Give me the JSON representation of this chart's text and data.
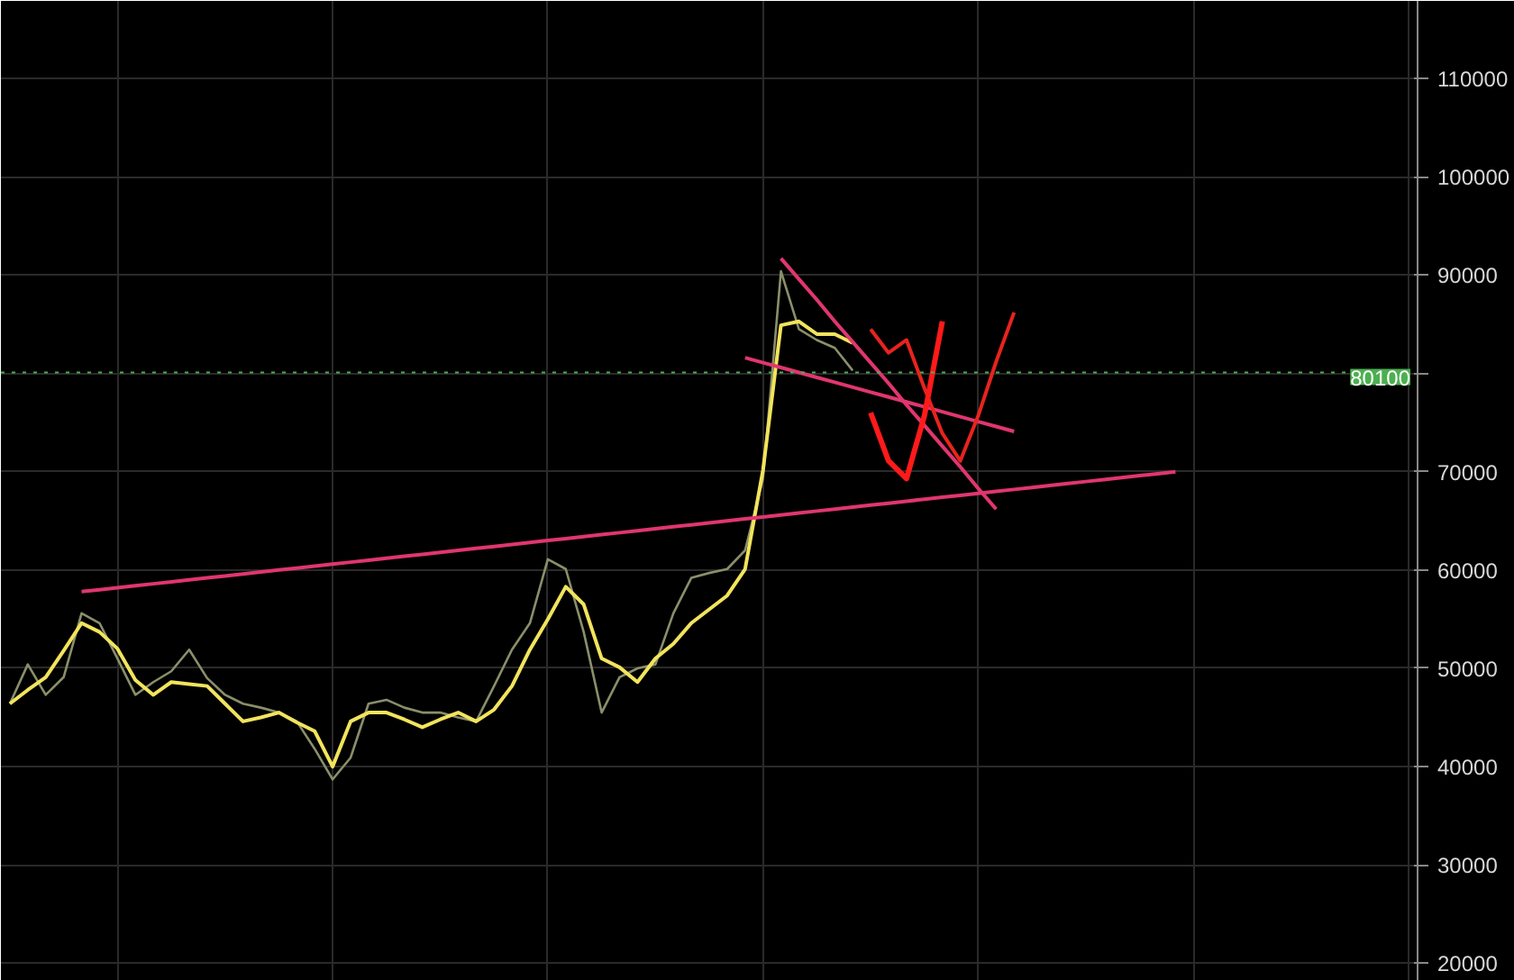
{
  "chart_data": {
    "type": "line",
    "categories": [
      null,
      null,
      null,
      null,
      null,
      null,
      null,
      null,
      null,
      null,
      null,
      null,
      null,
      null,
      null,
      null,
      null,
      null,
      null,
      null,
      null,
      null,
      null,
      null,
      null,
      null,
      null,
      null,
      null,
      null,
      null,
      null,
      null,
      null,
      null,
      null,
      null,
      null,
      null,
      null,
      null,
      null,
      null,
      null,
      null,
      null,
      null,
      null,
      null,
      null,
      null,
      null,
      null,
      null,
      null,
      null,
      null,
      null,
      null,
      null,
      null,
      null,
      null,
      null,
      null,
      null,
      null,
      null,
      null,
      null,
      null,
      null,
      null,
      null,
      null,
      null,
      null,
      null,
      null
    ],
    "ylim": [
      18200,
      117900
    ],
    "yticks": [
      20000,
      30000,
      40000,
      50000,
      60000,
      70000,
      {
        "value": 80000,
        "label": null
      },
      90000,
      100000,
      110000
    ],
    "tick_labels": "y",
    "grid": true,
    "line_style": "solid",
    "ref_lines": [
      {
        "axis": "y",
        "value": 80100,
        "label": "80100",
        "color": "#4caf50",
        "line_style": "dotted"
      }
    ],
    "series": [
      {
        "color": "#8a8f6a",
        "values": [
          46400,
          50400,
          47300,
          49100,
          55600,
          54600,
          51000,
          47300,
          48600,
          49700,
          51900,
          49000,
          47300,
          46400,
          46000,
          45500,
          44600,
          41800,
          38700,
          40900,
          46400,
          46800,
          46000,
          45500,
          45500,
          45000,
          44600,
          48200,
          51900,
          54600,
          61100,
          60100,
          53700,
          45500,
          49100,
          50000,
          50400,
          55600,
          59200,
          59700,
          60100,
          62000,
          69300,
          90400,
          84500,
          83400,
          82600,
          80300,
          null,
          null,
          null,
          null,
          null,
          null,
          null,
          null,
          null,
          null,
          null,
          null,
          null,
          null,
          null,
          null,
          null,
          null,
          null,
          null,
          null,
          null,
          null,
          null,
          null,
          null,
          null,
          null,
          null,
          null,
          null
        ]
      },
      {
        "color": "#f2e45c",
        "values": [
          46400,
          47800,
          49100,
          51800,
          54600,
          53700,
          52000,
          48800,
          47300,
          48600,
          48400,
          48200,
          46400,
          44600,
          45000,
          45500,
          44500,
          43600,
          40000,
          44600,
          45500,
          45500,
          44800,
          44000,
          44800,
          45500,
          44600,
          45800,
          48200,
          51900,
          55000,
          58300,
          56500,
          51000,
          50100,
          48600,
          51000,
          52500,
          54600,
          56000,
          57400,
          60100,
          70200,
          84900,
          85300,
          84000,
          84000,
          83100,
          null,
          null,
          null,
          null,
          null,
          null,
          null,
          null,
          null,
          null,
          null,
          null,
          null,
          null,
          null,
          null,
          null,
          null,
          null,
          null,
          null,
          null,
          null,
          null,
          null,
          null,
          null,
          null,
          null,
          null,
          null
        ]
      },
      {
        "color": "#e0366f",
        "values": [
          null,
          null,
          null,
          null,
          57800,
          58000,
          58200,
          58400,
          58600,
          58800,
          59000,
          59200,
          59400,
          59600,
          59800,
          60000,
          60200,
          60400,
          60600,
          60800,
          61000,
          61200,
          61400,
          61600,
          61800,
          62000,
          62200,
          62400,
          62600,
          62800,
          63000,
          63200,
          63400,
          63600,
          63800,
          64000,
          64200,
          64400,
          64600,
          64800,
          65000,
          65200,
          65400,
          65600,
          65800,
          66000,
          66200,
          66400,
          66600,
          66800,
          67000,
          67200,
          67400,
          67600,
          67800,
          68000,
          68200,
          68400,
          68600,
          68800,
          69000,
          69200,
          69400,
          69600,
          69800,
          70000,
          null,
          null,
          null,
          null,
          null,
          null,
          null,
          null,
          null,
          null,
          null,
          null,
          null
        ]
      },
      {
        "color": "#e0366f",
        "values": [
          null,
          null,
          null,
          null,
          null,
          null,
          null,
          null,
          null,
          null,
          null,
          null,
          null,
          null,
          null,
          null,
          null,
          null,
          null,
          null,
          null,
          null,
          null,
          null,
          null,
          null,
          null,
          null,
          null,
          null,
          null,
          null,
          null,
          null,
          null,
          null,
          null,
          null,
          null,
          null,
          null,
          null,
          null,
          91700,
          89600,
          87500,
          85300,
          83200,
          81100,
          79000,
          76800,
          74700,
          72600,
          70500,
          68300,
          66200,
          null,
          null,
          null,
          null,
          null,
          null,
          null,
          null,
          null,
          null,
          null,
          null,
          null,
          null,
          null,
          null,
          null,
          null,
          null,
          null,
          null,
          null,
          null
        ]
      },
      {
        "color": "#e0366f",
        "values": [
          null,
          null,
          null,
          null,
          null,
          null,
          null,
          null,
          null,
          null,
          null,
          null,
          null,
          null,
          null,
          null,
          null,
          null,
          null,
          null,
          null,
          null,
          null,
          null,
          null,
          null,
          null,
          null,
          null,
          null,
          null,
          null,
          null,
          null,
          null,
          null,
          null,
          null,
          null,
          null,
          null,
          81600,
          81100,
          80600,
          80100,
          79600,
          79100,
          78600,
          78100,
          77600,
          77100,
          76600,
          76100,
          75600,
          75100,
          74600,
          74100,
          null,
          null,
          null,
          null,
          null,
          null,
          null,
          null,
          null,
          null,
          null,
          null,
          null,
          null,
          null,
          null,
          null,
          null,
          null,
          null,
          null,
          null
        ]
      },
      {
        "color": "#e8231e",
        "values": [
          null,
          null,
          null,
          null,
          null,
          null,
          null,
          null,
          null,
          null,
          null,
          null,
          null,
          null,
          null,
          null,
          null,
          null,
          null,
          null,
          null,
          null,
          null,
          null,
          null,
          null,
          null,
          null,
          null,
          null,
          null,
          null,
          null,
          null,
          null,
          null,
          null,
          null,
          null,
          null,
          null,
          null,
          null,
          null,
          null,
          null,
          null,
          null,
          84500,
          82100,
          83400,
          78500,
          73900,
          71100,
          75700,
          81200,
          86200,
          null,
          null,
          null,
          null,
          null,
          null,
          null,
          null,
          null,
          null,
          null,
          null,
          null,
          null,
          null,
          null,
          null,
          null,
          null,
          null,
          null,
          null
        ]
      },
      {
        "color": "#ff1a1a",
        "values": [
          null,
          null,
          null,
          null,
          null,
          null,
          null,
          null,
          null,
          null,
          null,
          null,
          null,
          null,
          null,
          null,
          null,
          null,
          null,
          null,
          null,
          null,
          null,
          null,
          null,
          null,
          null,
          null,
          null,
          null,
          null,
          null,
          null,
          null,
          null,
          null,
          null,
          null,
          null,
          null,
          null,
          null,
          null,
          null,
          null,
          null,
          null,
          null,
          76000,
          71100,
          69300,
          75700,
          85300,
          null,
          null,
          null,
          null,
          null,
          null,
          null,
          null,
          null,
          null,
          null,
          null,
          null,
          null,
          null,
          null,
          null,
          null,
          null,
          null,
          null,
          null,
          null,
          null,
          null,
          null
        ]
      }
    ]
  }
}
